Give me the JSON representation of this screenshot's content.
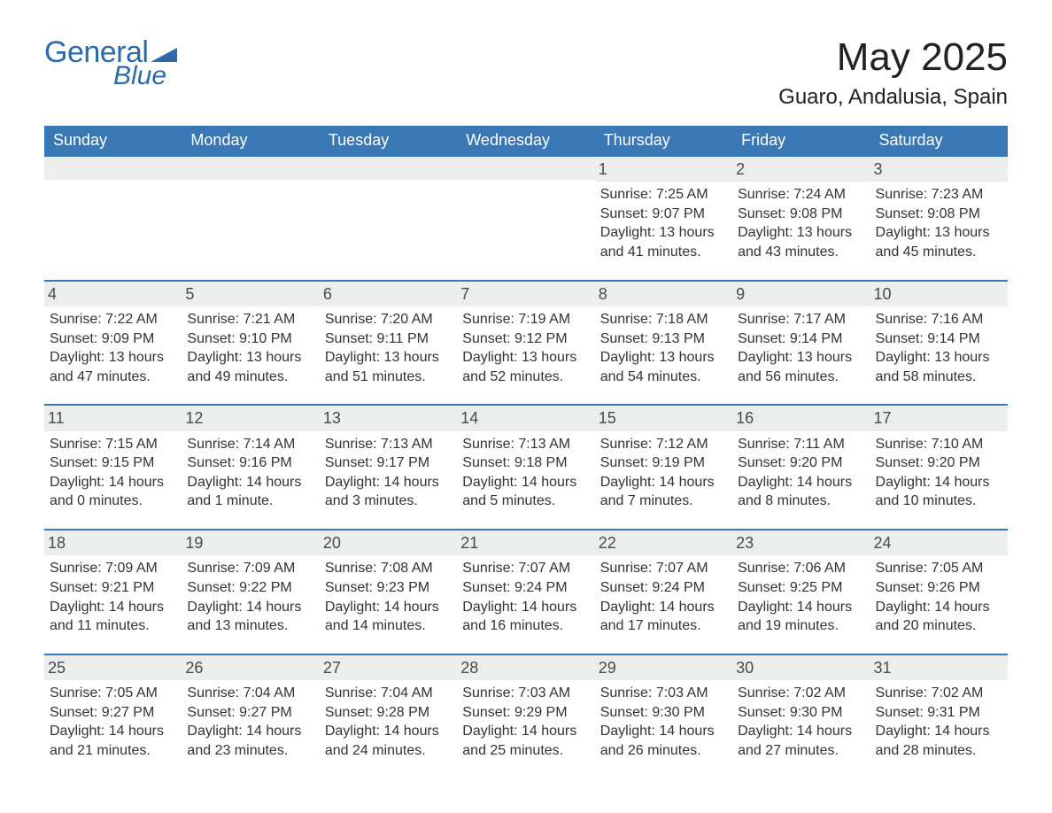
{
  "brand": {
    "word1": "General",
    "word2": "Blue",
    "triangle_color": "#2f6aa8"
  },
  "title": "May 2025",
  "subtitle": "Guaro, Andalusia, Spain",
  "colors": {
    "header_bg": "#3a78b5",
    "header_text": "#ffffff",
    "daynum_bg": "#eceded",
    "row_border": "#3a78b5",
    "text": "#333333",
    "logo": "#2f6aa8"
  },
  "weekdays": [
    "Sunday",
    "Monday",
    "Tuesday",
    "Wednesday",
    "Thursday",
    "Friday",
    "Saturday"
  ],
  "weeks": [
    [
      null,
      null,
      null,
      null,
      {
        "day": "1",
        "sunrise": "Sunrise: 7:25 AM",
        "sunset": "Sunset: 9:07 PM",
        "dl1": "Daylight: 13 hours",
        "dl2": "and 41 minutes."
      },
      {
        "day": "2",
        "sunrise": "Sunrise: 7:24 AM",
        "sunset": "Sunset: 9:08 PM",
        "dl1": "Daylight: 13 hours",
        "dl2": "and 43 minutes."
      },
      {
        "day": "3",
        "sunrise": "Sunrise: 7:23 AM",
        "sunset": "Sunset: 9:08 PM",
        "dl1": "Daylight: 13 hours",
        "dl2": "and 45 minutes."
      }
    ],
    [
      {
        "day": "4",
        "sunrise": "Sunrise: 7:22 AM",
        "sunset": "Sunset: 9:09 PM",
        "dl1": "Daylight: 13 hours",
        "dl2": "and 47 minutes."
      },
      {
        "day": "5",
        "sunrise": "Sunrise: 7:21 AM",
        "sunset": "Sunset: 9:10 PM",
        "dl1": "Daylight: 13 hours",
        "dl2": "and 49 minutes."
      },
      {
        "day": "6",
        "sunrise": "Sunrise: 7:20 AM",
        "sunset": "Sunset: 9:11 PM",
        "dl1": "Daylight: 13 hours",
        "dl2": "and 51 minutes."
      },
      {
        "day": "7",
        "sunrise": "Sunrise: 7:19 AM",
        "sunset": "Sunset: 9:12 PM",
        "dl1": "Daylight: 13 hours",
        "dl2": "and 52 minutes."
      },
      {
        "day": "8",
        "sunrise": "Sunrise: 7:18 AM",
        "sunset": "Sunset: 9:13 PM",
        "dl1": "Daylight: 13 hours",
        "dl2": "and 54 minutes."
      },
      {
        "day": "9",
        "sunrise": "Sunrise: 7:17 AM",
        "sunset": "Sunset: 9:14 PM",
        "dl1": "Daylight: 13 hours",
        "dl2": "and 56 minutes."
      },
      {
        "day": "10",
        "sunrise": "Sunrise: 7:16 AM",
        "sunset": "Sunset: 9:14 PM",
        "dl1": "Daylight: 13 hours",
        "dl2": "and 58 minutes."
      }
    ],
    [
      {
        "day": "11",
        "sunrise": "Sunrise: 7:15 AM",
        "sunset": "Sunset: 9:15 PM",
        "dl1": "Daylight: 14 hours",
        "dl2": "and 0 minutes."
      },
      {
        "day": "12",
        "sunrise": "Sunrise: 7:14 AM",
        "sunset": "Sunset: 9:16 PM",
        "dl1": "Daylight: 14 hours",
        "dl2": "and 1 minute."
      },
      {
        "day": "13",
        "sunrise": "Sunrise: 7:13 AM",
        "sunset": "Sunset: 9:17 PM",
        "dl1": "Daylight: 14 hours",
        "dl2": "and 3 minutes."
      },
      {
        "day": "14",
        "sunrise": "Sunrise: 7:13 AM",
        "sunset": "Sunset: 9:18 PM",
        "dl1": "Daylight: 14 hours",
        "dl2": "and 5 minutes."
      },
      {
        "day": "15",
        "sunrise": "Sunrise: 7:12 AM",
        "sunset": "Sunset: 9:19 PM",
        "dl1": "Daylight: 14 hours",
        "dl2": "and 7 minutes."
      },
      {
        "day": "16",
        "sunrise": "Sunrise: 7:11 AM",
        "sunset": "Sunset: 9:20 PM",
        "dl1": "Daylight: 14 hours",
        "dl2": "and 8 minutes."
      },
      {
        "day": "17",
        "sunrise": "Sunrise: 7:10 AM",
        "sunset": "Sunset: 9:20 PM",
        "dl1": "Daylight: 14 hours",
        "dl2": "and 10 minutes."
      }
    ],
    [
      {
        "day": "18",
        "sunrise": "Sunrise: 7:09 AM",
        "sunset": "Sunset: 9:21 PM",
        "dl1": "Daylight: 14 hours",
        "dl2": "and 11 minutes."
      },
      {
        "day": "19",
        "sunrise": "Sunrise: 7:09 AM",
        "sunset": "Sunset: 9:22 PM",
        "dl1": "Daylight: 14 hours",
        "dl2": "and 13 minutes."
      },
      {
        "day": "20",
        "sunrise": "Sunrise: 7:08 AM",
        "sunset": "Sunset: 9:23 PM",
        "dl1": "Daylight: 14 hours",
        "dl2": "and 14 minutes."
      },
      {
        "day": "21",
        "sunrise": "Sunrise: 7:07 AM",
        "sunset": "Sunset: 9:24 PM",
        "dl1": "Daylight: 14 hours",
        "dl2": "and 16 minutes."
      },
      {
        "day": "22",
        "sunrise": "Sunrise: 7:07 AM",
        "sunset": "Sunset: 9:24 PM",
        "dl1": "Daylight: 14 hours",
        "dl2": "and 17 minutes."
      },
      {
        "day": "23",
        "sunrise": "Sunrise: 7:06 AM",
        "sunset": "Sunset: 9:25 PM",
        "dl1": "Daylight: 14 hours",
        "dl2": "and 19 minutes."
      },
      {
        "day": "24",
        "sunrise": "Sunrise: 7:05 AM",
        "sunset": "Sunset: 9:26 PM",
        "dl1": "Daylight: 14 hours",
        "dl2": "and 20 minutes."
      }
    ],
    [
      {
        "day": "25",
        "sunrise": "Sunrise: 7:05 AM",
        "sunset": "Sunset: 9:27 PM",
        "dl1": "Daylight: 14 hours",
        "dl2": "and 21 minutes."
      },
      {
        "day": "26",
        "sunrise": "Sunrise: 7:04 AM",
        "sunset": "Sunset: 9:27 PM",
        "dl1": "Daylight: 14 hours",
        "dl2": "and 23 minutes."
      },
      {
        "day": "27",
        "sunrise": "Sunrise: 7:04 AM",
        "sunset": "Sunset: 9:28 PM",
        "dl1": "Daylight: 14 hours",
        "dl2": "and 24 minutes."
      },
      {
        "day": "28",
        "sunrise": "Sunrise: 7:03 AM",
        "sunset": "Sunset: 9:29 PM",
        "dl1": "Daylight: 14 hours",
        "dl2": "and 25 minutes."
      },
      {
        "day": "29",
        "sunrise": "Sunrise: 7:03 AM",
        "sunset": "Sunset: 9:30 PM",
        "dl1": "Daylight: 14 hours",
        "dl2": "and 26 minutes."
      },
      {
        "day": "30",
        "sunrise": "Sunrise: 7:02 AM",
        "sunset": "Sunset: 9:30 PM",
        "dl1": "Daylight: 14 hours",
        "dl2": "and 27 minutes."
      },
      {
        "day": "31",
        "sunrise": "Sunrise: 7:02 AM",
        "sunset": "Sunset: 9:31 PM",
        "dl1": "Daylight: 14 hours",
        "dl2": "and 28 minutes."
      }
    ]
  ]
}
